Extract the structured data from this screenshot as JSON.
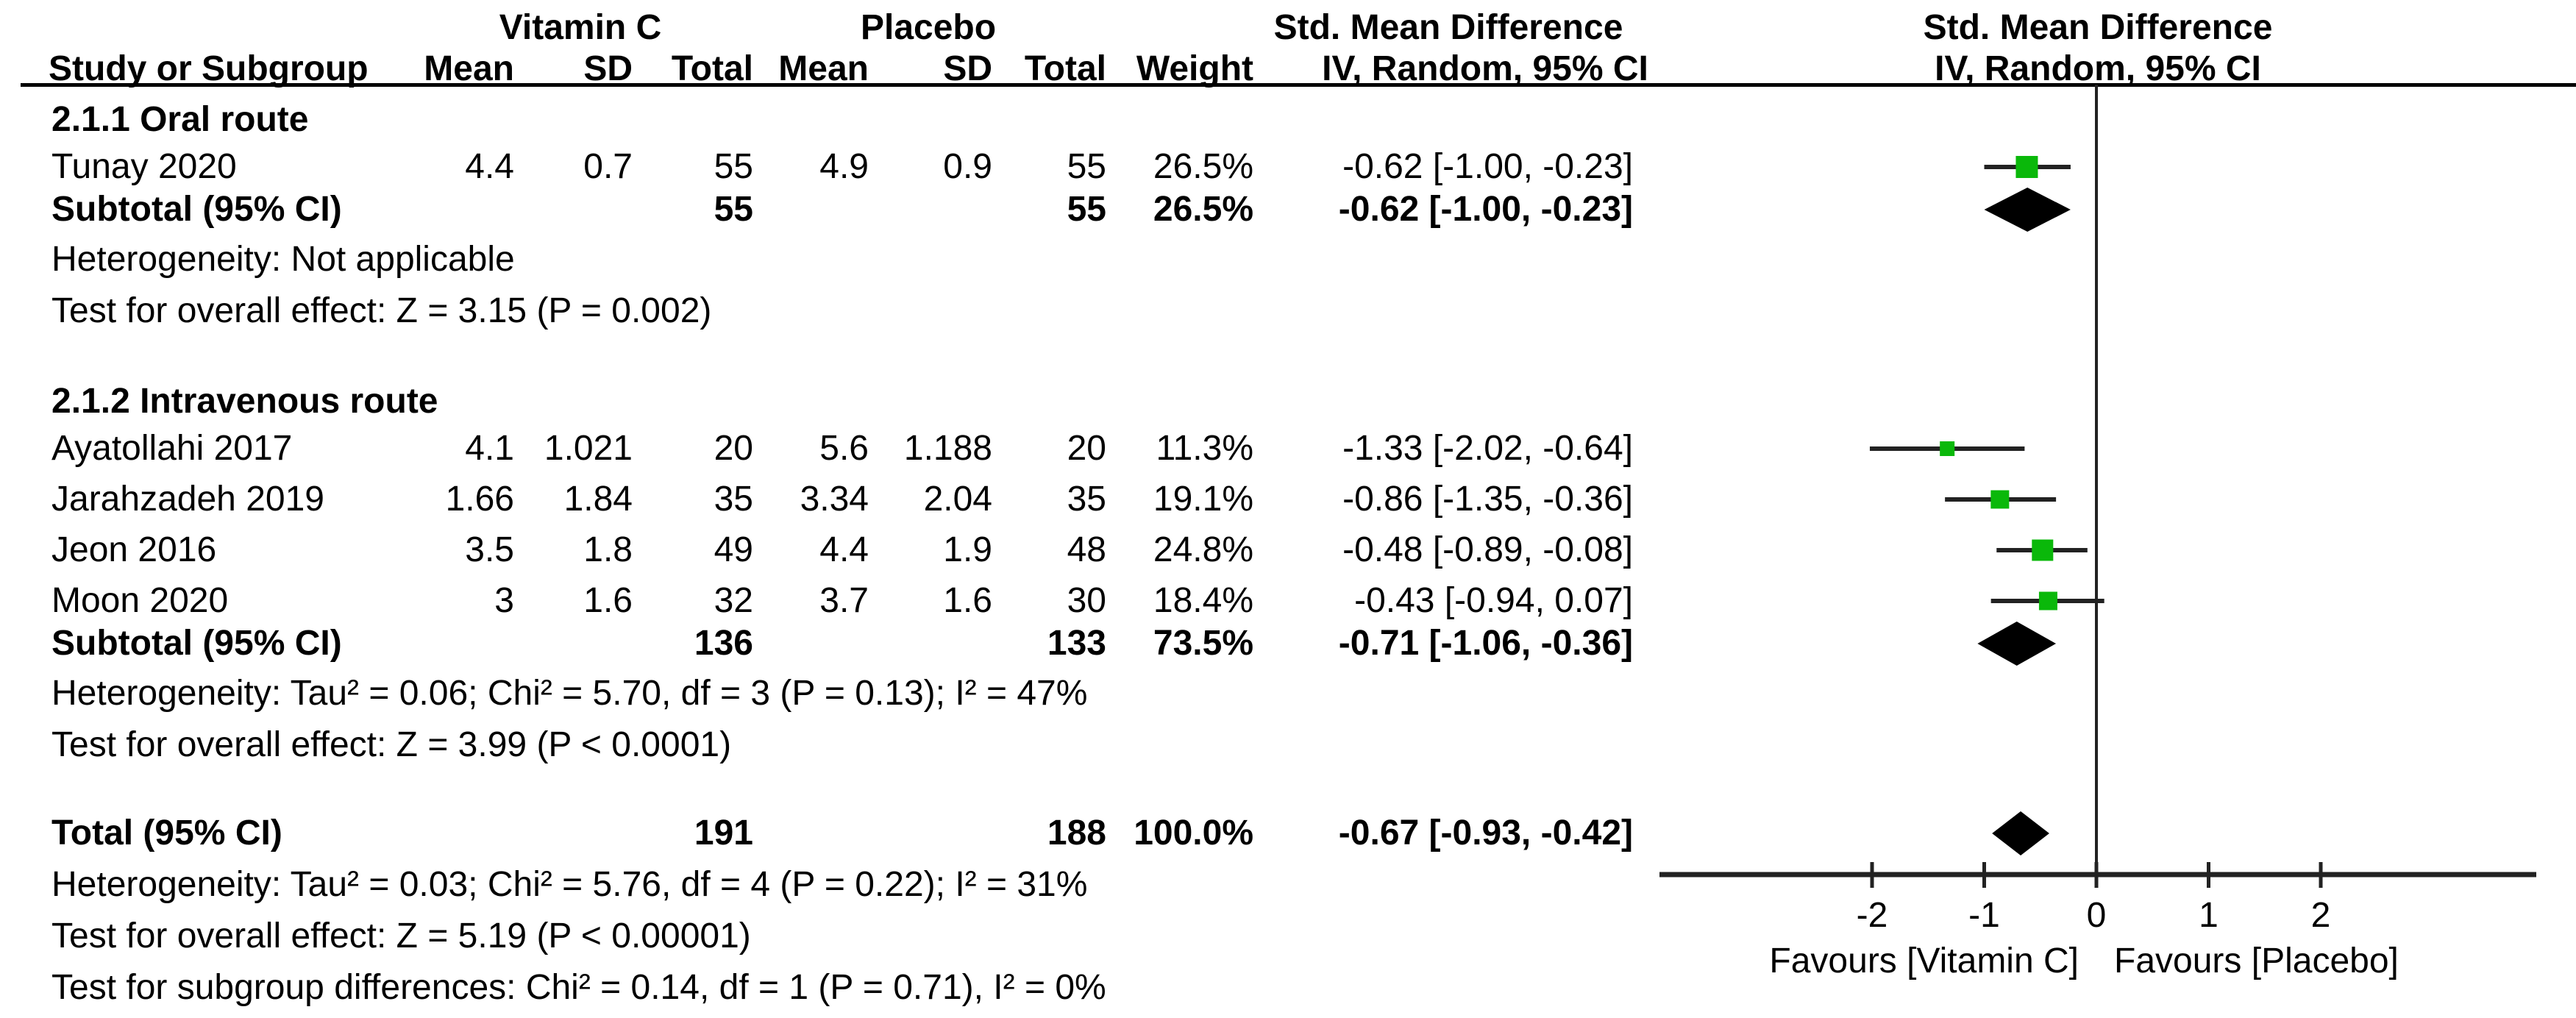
{
  "chart_data": {
    "type": "forest",
    "title": "Std. Mean Difference — Vitamin C vs Placebo (IV, Random, 95% CI)",
    "group1_label": "Vitamin C",
    "group2_label": "Placebo",
    "effect_label": "Std. Mean Difference",
    "method_label": "IV, Random, 95% CI",
    "columns": {
      "study": "Study or Subgroup",
      "mean": "Mean",
      "sd": "SD",
      "total": "Total",
      "weight": "Weight"
    },
    "marker_color": "#0ab80a",
    "line_color": "#222222",
    "axis": {
      "ticks": [
        -2,
        -1,
        0,
        1,
        2
      ],
      "range": [
        -3.9,
        3.92
      ],
      "favours_left": "Favours [Vitamin C]",
      "favours_right": "Favours [Placebo]"
    },
    "sections": [
      {
        "title": "2.1.1 Oral route",
        "studies": [
          {
            "name": "Tunay 2020",
            "mean1": "4.4",
            "sd1": "0.7",
            "total1": "55",
            "mean2": "4.9",
            "sd2": "0.9",
            "total2": "55",
            "weight": "26.5%",
            "weight_value": 26.5,
            "ci_text": "-0.62 [-1.00, -0.23]",
            "est": -0.62,
            "ci_low": -1.0,
            "ci_high": -0.23
          }
        ],
        "subtotal": {
          "label": "Subtotal (95% CI)",
          "total1": "55",
          "total2": "55",
          "weight": "26.5%",
          "ci_text": "-0.62 [-1.00, -0.23]",
          "est": -0.62,
          "ci_low": -1.0,
          "ci_high": -0.23
        },
        "heterogeneity": "Heterogeneity: Not applicable",
        "overall_effect": "Test for overall effect: Z = 3.15 (P = 0.002)"
      },
      {
        "title": "2.1.2 Intravenous route",
        "studies": [
          {
            "name": "Ayatollahi 2017",
            "mean1": "4.1",
            "sd1": "1.021",
            "total1": "20",
            "mean2": "5.6",
            "sd2": "1.188",
            "total2": "20",
            "weight": "11.3%",
            "weight_value": 11.3,
            "ci_text": "-1.33 [-2.02, -0.64]",
            "est": -1.33,
            "ci_low": -2.02,
            "ci_high": -0.64
          },
          {
            "name": "Jarahzadeh 2019",
            "mean1": "1.66",
            "sd1": "1.84",
            "total1": "35",
            "mean2": "3.34",
            "sd2": "2.04",
            "total2": "35",
            "weight": "19.1%",
            "weight_value": 19.1,
            "ci_text": "-0.86 [-1.35, -0.36]",
            "est": -0.86,
            "ci_low": -1.35,
            "ci_high": -0.36
          },
          {
            "name": "Jeon 2016",
            "mean1": "3.5",
            "sd1": "1.8",
            "total1": "49",
            "mean2": "4.4",
            "sd2": "1.9",
            "total2": "48",
            "weight": "24.8%",
            "weight_value": 24.8,
            "ci_text": "-0.48 [-0.89, -0.08]",
            "est": -0.48,
            "ci_low": -0.89,
            "ci_high": -0.08
          },
          {
            "name": "Moon 2020",
            "mean1": "3",
            "sd1": "1.6",
            "total1": "32",
            "mean2": "3.7",
            "sd2": "1.6",
            "total2": "30",
            "weight": "18.4%",
            "weight_value": 18.4,
            "ci_text": "-0.43 [-0.94, 0.07]",
            "est": -0.43,
            "ci_low": -0.94,
            "ci_high": 0.07
          }
        ],
        "subtotal": {
          "label": "Subtotal (95% CI)",
          "total1": "136",
          "total2": "133",
          "weight": "73.5%",
          "ci_text": "-0.71 [-1.06, -0.36]",
          "est": -0.71,
          "ci_low": -1.06,
          "ci_high": -0.36
        },
        "heterogeneity": "Heterogeneity: Tau² = 0.06; Chi² = 5.70, df = 3 (P = 0.13); I² = 47%",
        "overall_effect": "Test for overall effect: Z = 3.99 (P < 0.0001)"
      }
    ],
    "total": {
      "label": "Total (95% CI)",
      "total1": "191",
      "total2": "188",
      "weight": "100.0%",
      "ci_text": "-0.67 [-0.93, -0.42]",
      "est": -0.67,
      "ci_low": -0.93,
      "ci_high": -0.42
    },
    "footnotes": [
      "Heterogeneity: Tau² = 0.03; Chi² = 5.76, df = 4 (P = 0.22); I² = 31%",
      "Test for overall effect: Z = 5.19 (P < 0.00001)",
      "Test for subgroup differences: Chi² = 0.14, df = 1 (P = 0.71), I² = 0%"
    ]
  }
}
